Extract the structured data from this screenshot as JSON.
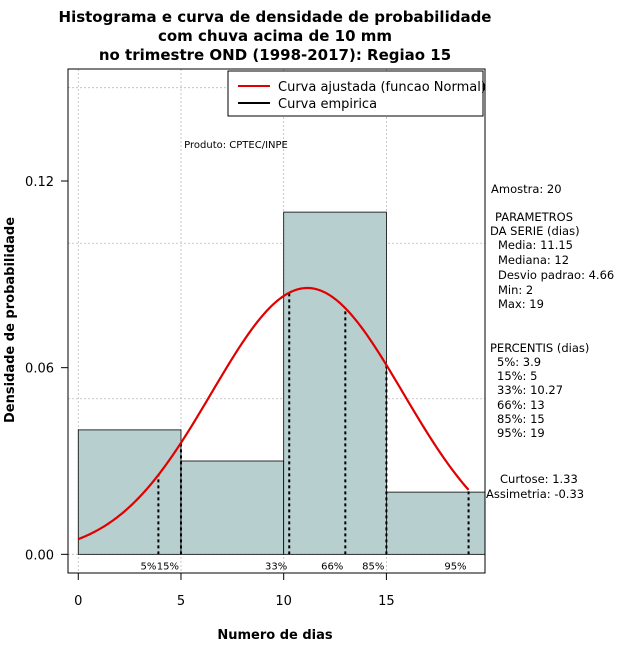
{
  "chart_data": {
    "type": "histogram",
    "title_lines": [
      "Histograma e curva de densidade de probabilidade",
      "com chuva acima de 10 mm",
      "no trimestre OND (1998-2017): Regiao 15"
    ],
    "xlabel": "Numero de dias",
    "ylabel": "Densidade de probabilidade",
    "xlim": [
      -0.5,
      19.8
    ],
    "ylim": [
      -0.006,
      0.156
    ],
    "x_ticks": [
      0,
      5,
      10,
      15
    ],
    "x_tick_labels": [
      "0",
      "5",
      "10",
      "15"
    ],
    "y_ticks": [
      0.0,
      0.06,
      0.12
    ],
    "y_tick_labels": [
      "0.00",
      "0.06",
      "0.12"
    ],
    "grid": true,
    "grid_x": [
      0,
      5,
      10,
      15
    ],
    "grid_y": [
      0,
      0.05,
      0.1,
      0.15
    ],
    "bars": [
      {
        "x0": 0,
        "x1": 5,
        "density": 0.04
      },
      {
        "x0": 5,
        "x1": 10,
        "density": 0.03
      },
      {
        "x0": 10,
        "x1": 15,
        "density": 0.11
      },
      {
        "x0": 15,
        "x1": 20,
        "density": 0.02
      }
    ],
    "bar_color": "#b8cfcf",
    "normal_fit": {
      "mean": 11.15,
      "sd": 4.66,
      "x_range": [
        0,
        19
      ],
      "color": "#e00000"
    },
    "percentile_lines": [
      {
        "x": 3.9,
        "label": "5%"
      },
      {
        "x": 5,
        "label": "15%"
      },
      {
        "x": 10.27,
        "label": "33%"
      },
      {
        "x": 13,
        "label": "66%"
      },
      {
        "x": 15,
        "label": "85%"
      },
      {
        "x": 19,
        "label": "95%"
      }
    ],
    "legend": {
      "position": "top-right",
      "entries": [
        {
          "label": "Curva ajustada (funcao Normal)",
          "color": "#e00000"
        },
        {
          "label": "Curva empirica",
          "color": "#000000"
        }
      ]
    },
    "annotation_produto": "Produto: CPTEC/INPE"
  },
  "stats_panel": {
    "amostra": "Amostra: 20",
    "params_title": "PARAMETROS",
    "params_subtitle": "DA SERIE (dias)",
    "params": [
      "Media: 11.15",
      "Mediana: 12",
      "Desvio padrao: 4.66",
      "Min: 2",
      "Max: 19"
    ],
    "percentis_title": "PERCENTIS (dias)",
    "percentis": [
      "5%: 3.9",
      "15%: 5",
      "33%: 10.27",
      "66%: 13",
      "85%: 15",
      "95%: 19"
    ],
    "curtose": "Curtose: 1.33",
    "assimetria": "Assimetria: -0.33"
  }
}
